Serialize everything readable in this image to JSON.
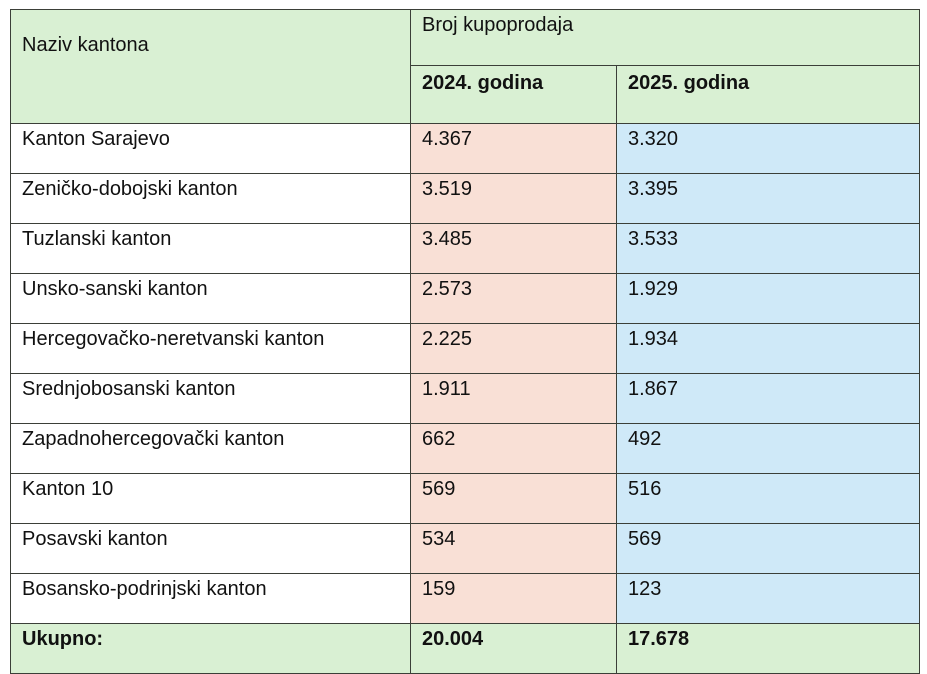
{
  "table": {
    "header": {
      "name_col": "Naziv kantona",
      "group": "Broj kupoprodaja",
      "year_2024": "2024. godina",
      "year_2025": "2025. godina"
    },
    "rows": [
      {
        "name": "Kanton Sarajevo",
        "y2024": "4.367",
        "y2025": "3.320"
      },
      {
        "name": "Zeničko-dobojski kanton",
        "y2024": "3.519",
        "y2025": "3.395"
      },
      {
        "name": "Tuzlanski kanton",
        "y2024": "3.485",
        "y2025": "3.533"
      },
      {
        "name": "Unsko-sanski kanton",
        "y2024": "2.573",
        "y2025": "1.929"
      },
      {
        "name": "Hercegovačko-neretvanski kanton",
        "y2024": "2.225",
        "y2025": "1.934"
      },
      {
        "name": "Srednjobosanski kanton",
        "y2024": "1.911",
        "y2025": "1.867"
      },
      {
        "name": "Zapadnohercegovački kanton",
        "y2024": "662",
        "y2025": "492"
      },
      {
        "name": "Kanton 10",
        "y2024": "569",
        "y2025": "516"
      },
      {
        "name": "Posavski kanton",
        "y2024": "534",
        "y2025": "569"
      },
      {
        "name": "Bosansko-podrinjski kanton",
        "y2024": "159",
        "y2025": "123"
      }
    ],
    "total": {
      "label": "Ukupno:",
      "y2024": "20.004",
      "y2025": "17.678"
    },
    "colors": {
      "header_bg": "#d9f0d3",
      "col_2024_bg": "#f9e0d6",
      "col_2025_bg": "#cfe9f8",
      "border": "#3b3f38"
    }
  }
}
